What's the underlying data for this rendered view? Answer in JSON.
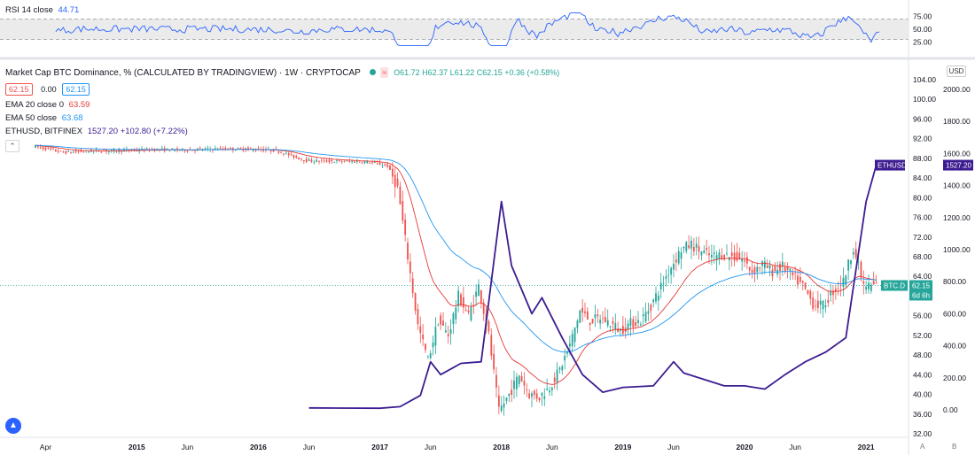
{
  "rsi_panel": {
    "label": "RSI 14 close",
    "value": "44.71",
    "ticks": [
      "75.00",
      "50.00",
      "25.00"
    ]
  },
  "main_legend": {
    "title": "Market Cap BTC Dominance, % (CALCULATED BY TRADINGVIEW) · 1W · CRYPTOCAP",
    "ohlc": "O61.72 H62.37 L61.22 C62.15 +0.36 (+0.58%)",
    "bid": "62.15",
    "spread": "0.00",
    "ask": "62.15",
    "ema20_label": "EMA 20 close 0",
    "ema20_value": "63.59",
    "ema50_label": "EMA 50 close",
    "ema50_value": "63.68",
    "eth_label": "ETHUSD, BITFINEX",
    "eth_value": "1527.20 +102.80 (+7.22%)",
    "collapse_icon": "chevron-up-icon"
  },
  "right_axis": {
    "currency_button": "USD",
    "btc_ticks": [
      "104.00",
      "100.00",
      "96.00",
      "92.00",
      "88.00",
      "84.00",
      "80.00",
      "76.00",
      "72.00",
      "68.00",
      "64.00",
      "60.00",
      "56.00",
      "52.00",
      "48.00",
      "44.00",
      "40.00",
      "36.00",
      "32.00"
    ],
    "eth_ticks": [
      "2000.00",
      "1800.00",
      "1600.00",
      "1400.00",
      "1200.00",
      "1000.00",
      "800.00",
      "600.00",
      "400.00",
      "200.00",
      "0.00"
    ],
    "eth_tag_label": "ETHUSD",
    "eth_tag_value": "1527.20",
    "btc_tag_label": "BTC.D",
    "btc_tag_value": "62.15",
    "btc_tag_countdown": "6d 6h"
  },
  "time_axis": [
    "Apr",
    "2015",
    "Jun",
    "2016",
    "Jun",
    "2017",
    "Jun",
    "2018",
    "Jun",
    "2019",
    "Jun",
    "2020",
    "Jun",
    "2021"
  ],
  "bottom_buttons": {
    "a": "A",
    "b": "B"
  },
  "colors": {
    "up": "#26a69a",
    "down": "#ef5350",
    "ema20": "#e53935",
    "ema50": "#2196f3",
    "eth": "#3d1c91",
    "rsi": "#2962ff",
    "rsi_band": "#ebebeb"
  },
  "chart_data": {
    "type": "line",
    "title": "Market Cap BTC Dominance, % (CALCULATED BY TRADINGVIEW)",
    "btc_dominance": {
      "x": [
        "2014-03",
        "2014-06",
        "2014-09",
        "2014-12",
        "2015-03",
        "2015-06",
        "2015-09",
        "2015-12",
        "2016-03",
        "2016-06",
        "2016-09",
        "2016-12",
        "2017-02",
        "2017-03",
        "2017-04",
        "2017-05",
        "2017-06",
        "2017-07",
        "2017-08",
        "2017-09",
        "2017-10",
        "2017-11",
        "2017-12",
        "2018-01",
        "2018-02",
        "2018-03",
        "2018-04",
        "2018-05",
        "2018-06",
        "2018-07",
        "2018-08",
        "2018-09",
        "2018-10",
        "2018-11",
        "2018-12",
        "2019-01",
        "2019-02",
        "2019-03",
        "2019-04",
        "2019-05",
        "2019-06",
        "2019-07",
        "2019-08",
        "2019-09",
        "2019-10",
        "2019-11",
        "2019-12",
        "2020-01",
        "2020-02",
        "2020-03",
        "2020-04",
        "2020-05",
        "2020-06",
        "2020-07",
        "2020-08",
        "2020-09",
        "2020-10",
        "2020-11",
        "2020-12",
        "2021-01",
        "2021-02"
      ],
      "values": [
        90.5,
        89.2,
        89.5,
        89.6,
        89.8,
        89.7,
        89.9,
        89.9,
        89.6,
        87.5,
        87.4,
        87.3,
        86.5,
        82.0,
        68.0,
        54.0,
        47.0,
        55.0,
        52.0,
        60.0,
        56.0,
        62.0,
        52.0,
        36.5,
        40.0,
        44.0,
        40.0,
        39.5,
        41.5,
        45.0,
        50.0,
        57.0,
        55.0,
        55.5,
        54.5,
        53.0,
        54.5,
        55.0,
        58.0,
        62.0,
        66.0,
        69.5,
        70.5,
        69.0,
        68.0,
        68.5,
        68.0,
        67.5,
        65.0,
        66.5,
        65.0,
        66.0,
        64.0,
        62.0,
        58.5,
        58.0,
        61.0,
        63.0,
        70.0,
        62.0,
        62.15
      ]
    },
    "ethusd": {
      "x": [
        "2016-06",
        "2017-01",
        "2017-03",
        "2017-05",
        "2017-06",
        "2017-07",
        "2017-09",
        "2017-11",
        "2018-01",
        "2018-02",
        "2018-04",
        "2018-05",
        "2018-07",
        "2018-09",
        "2018-11",
        "2019-01",
        "2019-04",
        "2019-06",
        "2019-07",
        "2019-09",
        "2019-11",
        "2020-01",
        "2020-03",
        "2020-05",
        "2020-07",
        "2020-09",
        "2020-11",
        "2021-01",
        "2021-02"
      ],
      "values": [
        12,
        10,
        20,
        90,
        300,
        220,
        290,
        300,
        1300,
        900,
        600,
        700,
        450,
        220,
        110,
        140,
        150,
        300,
        230,
        190,
        150,
        150,
        130,
        220,
        300,
        360,
        450,
        1300,
        1527.2
      ]
    },
    "ema20_last": 63.59,
    "ema50_last": 63.68,
    "rsi14_last": 44.71,
    "ylim_btc": [
      32,
      104
    ],
    "ylim_eth": [
      0,
      2000
    ],
    "ylim_rsi": [
      0,
      100
    ],
    "x_range": [
      "2014-03",
      "2021-03"
    ]
  }
}
